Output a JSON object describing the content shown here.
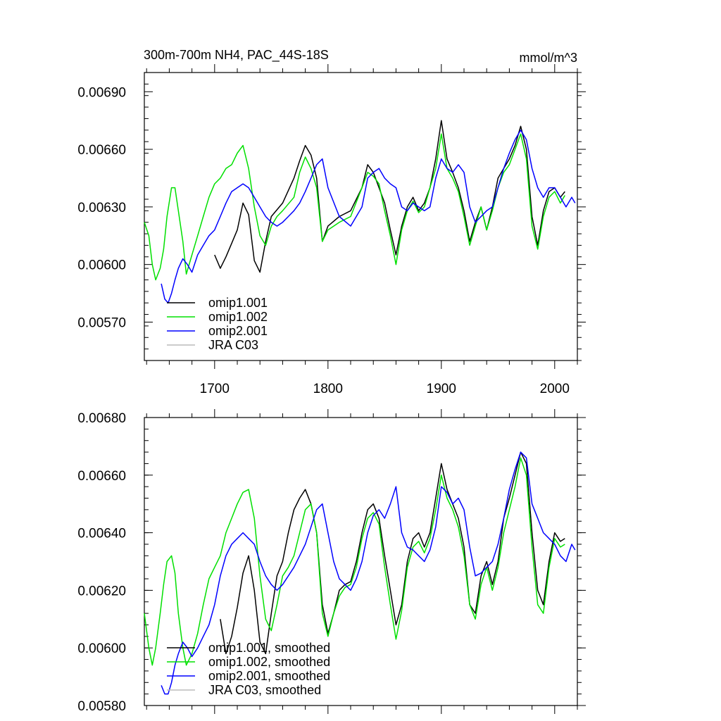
{
  "chart_data": [
    {
      "type": "line",
      "title": "300m-700m NH4, PAC_44S-18S",
      "units": "mmol/m^3",
      "xlim": [
        1638,
        2020
      ],
      "ylim": [
        0.0055,
        0.007
      ],
      "x_ticks": [
        1700,
        1800,
        1900,
        2000
      ],
      "x_tick_labels": [
        "1700",
        "1800",
        "1900",
        "2000"
      ],
      "y_ticks": [
        0.0057,
        0.006,
        0.0063,
        0.0066,
        0.0069
      ],
      "y_tick_labels": [
        "0.00570",
        "0.00600",
        "0.00630",
        "0.00660",
        "0.00690"
      ],
      "legend_position": "bottom-left",
      "series": [
        {
          "name": "omip1.001",
          "color": "#000000",
          "x": [
            1700,
            1705,
            1710,
            1715,
            1720,
            1725,
            1730,
            1735,
            1740,
            1745,
            1750,
            1760,
            1770,
            1775,
            1780,
            1785,
            1790,
            1795,
            1800,
            1810,
            1820,
            1830,
            1835,
            1840,
            1845,
            1850,
            1855,
            1860,
            1865,
            1870,
            1875,
            1880,
            1885,
            1890,
            1895,
            1900,
            1905,
            1910,
            1915,
            1920,
            1925,
            1930,
            1935,
            1940,
            1945,
            1950,
            1955,
            1960,
            1965,
            1970,
            1975,
            1980,
            1985,
            1990,
            1995,
            2000,
            2005,
            2009
          ],
          "values": [
            0.00605,
            0.00598,
            0.00604,
            0.00611,
            0.00618,
            0.00632,
            0.00626,
            0.00602,
            0.00596,
            0.00612,
            0.00625,
            0.00632,
            0.00645,
            0.00654,
            0.00662,
            0.00657,
            0.00645,
            0.00612,
            0.0062,
            0.00625,
            0.00628,
            0.0064,
            0.00652,
            0.00648,
            0.0064,
            0.00632,
            0.00618,
            0.00605,
            0.0062,
            0.0063,
            0.00635,
            0.00628,
            0.00632,
            0.0064,
            0.00655,
            0.00675,
            0.00655,
            0.00648,
            0.0064,
            0.00628,
            0.00612,
            0.00622,
            0.0063,
            0.00618,
            0.0063,
            0.00645,
            0.0065,
            0.00655,
            0.00662,
            0.00672,
            0.0066,
            0.00625,
            0.0061,
            0.00628,
            0.00638,
            0.0064,
            0.00635,
            0.00638
          ]
        },
        {
          "name": "omip1.002",
          "color": "#00e000",
          "x": [
            1638,
            1642,
            1645,
            1648,
            1652,
            1655,
            1658,
            1662,
            1665,
            1668,
            1672,
            1675,
            1680,
            1685,
            1690,
            1695,
            1700,
            1705,
            1710,
            1715,
            1720,
            1725,
            1730,
            1735,
            1740,
            1745,
            1750,
            1755,
            1760,
            1770,
            1775,
            1780,
            1785,
            1790,
            1795,
            1800,
            1810,
            1820,
            1830,
            1835,
            1840,
            1845,
            1850,
            1855,
            1860,
            1865,
            1870,
            1875,
            1880,
            1885,
            1890,
            1895,
            1900,
            1905,
            1910,
            1915,
            1920,
            1925,
            1930,
            1935,
            1940,
            1945,
            1950,
            1955,
            1960,
            1965,
            1970,
            1975,
            1980,
            1985,
            1990,
            1995,
            2000,
            2005,
            2009
          ],
          "values": [
            0.00622,
            0.00615,
            0.006,
            0.00592,
            0.00598,
            0.00608,
            0.00625,
            0.0064,
            0.0064,
            0.00628,
            0.00612,
            0.00595,
            0.00605,
            0.00615,
            0.00625,
            0.00635,
            0.00642,
            0.00645,
            0.0065,
            0.00652,
            0.00658,
            0.00662,
            0.0065,
            0.0063,
            0.00615,
            0.0061,
            0.0062,
            0.00625,
            0.00628,
            0.00635,
            0.00648,
            0.00656,
            0.0065,
            0.0064,
            0.00612,
            0.00618,
            0.00622,
            0.00625,
            0.0064,
            0.00648,
            0.00646,
            0.00642,
            0.00628,
            0.00615,
            0.006,
            0.00618,
            0.00628,
            0.00633,
            0.00627,
            0.0063,
            0.0064,
            0.0065,
            0.00668,
            0.0065,
            0.00645,
            0.00638,
            0.00625,
            0.0061,
            0.0062,
            0.0063,
            0.00618,
            0.00628,
            0.0064,
            0.00648,
            0.00652,
            0.0066,
            0.00668,
            0.00655,
            0.0062,
            0.00608,
            0.00625,
            0.00635,
            0.00638,
            0.00632,
            0.00636
          ]
        },
        {
          "name": "omip2.001",
          "color": "#0000ff",
          "x": [
            1653,
            1656,
            1659,
            1662,
            1665,
            1668,
            1672,
            1676,
            1680,
            1685,
            1690,
            1695,
            1700,
            1705,
            1710,
            1715,
            1720,
            1725,
            1730,
            1735,
            1740,
            1745,
            1750,
            1755,
            1760,
            1765,
            1770,
            1775,
            1780,
            1785,
            1790,
            1795,
            1800,
            1810,
            1820,
            1830,
            1835,
            1840,
            1845,
            1850,
            1855,
            1860,
            1865,
            1870,
            1875,
            1880,
            1885,
            1890,
            1895,
            1900,
            1905,
            1910,
            1915,
            1920,
            1925,
            1930,
            1935,
            1940,
            1945,
            1950,
            1955,
            1960,
            1965,
            1970,
            1975,
            1980,
            1985,
            1990,
            1995,
            2000,
            2005,
            2010,
            2015,
            2018
          ],
          "values": [
            0.0059,
            0.00582,
            0.0058,
            0.00585,
            0.00592,
            0.00598,
            0.00603,
            0.006,
            0.00596,
            0.00605,
            0.0061,
            0.00615,
            0.00618,
            0.00625,
            0.00632,
            0.00638,
            0.0064,
            0.00642,
            0.0064,
            0.00635,
            0.0063,
            0.00625,
            0.00622,
            0.0062,
            0.00622,
            0.00625,
            0.00628,
            0.00632,
            0.00638,
            0.00645,
            0.00652,
            0.00655,
            0.0064,
            0.00625,
            0.0062,
            0.0063,
            0.00645,
            0.00648,
            0.0065,
            0.00645,
            0.00642,
            0.0064,
            0.0063,
            0.00628,
            0.00632,
            0.0063,
            0.00628,
            0.0063,
            0.00645,
            0.00655,
            0.0065,
            0.00648,
            0.00652,
            0.00648,
            0.0063,
            0.00622,
            0.00625,
            0.00628,
            0.0063,
            0.0064,
            0.0065,
            0.00658,
            0.00665,
            0.0067,
            0.00665,
            0.0065,
            0.0064,
            0.00635,
            0.0064,
            0.0064,
            0.00635,
            0.0063,
            0.00635,
            0.00632
          ]
        },
        {
          "name": "JRA C03",
          "color": "#bbbbbb",
          "x": [],
          "values": []
        }
      ]
    },
    {
      "type": "line",
      "title": "",
      "xlim": [
        1638,
        2020
      ],
      "ylim": [
        0.0058,
        0.0068
      ],
      "x_ticks": [
        1700,
        1800,
        1900,
        2000
      ],
      "y_ticks": [
        0.0058,
        0.006,
        0.0062,
        0.0064,
        0.0066,
        0.0068
      ],
      "y_tick_labels": [
        "0.00580",
        "0.00600",
        "0.00620",
        "0.00640",
        "0.00660",
        "0.00680"
      ],
      "legend_position": "bottom-left",
      "series": [
        {
          "name": "omip1.001, smoothed",
          "color": "#000000",
          "x": [
            1705,
            1710,
            1715,
            1720,
            1725,
            1730,
            1735,
            1740,
            1745,
            1750,
            1755,
            1760,
            1765,
            1770,
            1775,
            1780,
            1785,
            1790,
            1795,
            1800,
            1805,
            1810,
            1815,
            1820,
            1825,
            1830,
            1835,
            1840,
            1845,
            1850,
            1855,
            1860,
            1865,
            1870,
            1875,
            1880,
            1885,
            1890,
            1895,
            1900,
            1905,
            1910,
            1915,
            1920,
            1925,
            1930,
            1935,
            1940,
            1945,
            1950,
            1955,
            1960,
            1965,
            1970,
            1975,
            1980,
            1985,
            1990,
            1995,
            2000,
            2005,
            2009
          ],
          "values": [
            0.0061,
            0.00598,
            0.00604,
            0.00614,
            0.00626,
            0.00632,
            0.0062,
            0.00602,
            0.00598,
            0.00612,
            0.00625,
            0.0063,
            0.0064,
            0.00648,
            0.00652,
            0.00655,
            0.0065,
            0.0064,
            0.00615,
            0.00605,
            0.00612,
            0.0062,
            0.00622,
            0.00623,
            0.0063,
            0.0064,
            0.00648,
            0.0065,
            0.00645,
            0.00632,
            0.0062,
            0.00608,
            0.00615,
            0.0063,
            0.00638,
            0.0064,
            0.00635,
            0.0064,
            0.00652,
            0.00664,
            0.00655,
            0.0065,
            0.00645,
            0.00635,
            0.00615,
            0.00612,
            0.00625,
            0.0063,
            0.00622,
            0.0063,
            0.00645,
            0.00652,
            0.0066,
            0.00668,
            0.00664,
            0.0064,
            0.0062,
            0.00615,
            0.0063,
            0.0064,
            0.00637,
            0.00638
          ]
        },
        {
          "name": "omip1.002, smoothed",
          "color": "#00e000",
          "x": [
            1638,
            1642,
            1645,
            1648,
            1652,
            1655,
            1658,
            1662,
            1665,
            1668,
            1672,
            1675,
            1680,
            1685,
            1690,
            1695,
            1700,
            1705,
            1710,
            1715,
            1720,
            1725,
            1730,
            1735,
            1740,
            1745,
            1750,
            1755,
            1760,
            1765,
            1770,
            1775,
            1780,
            1785,
            1790,
            1795,
            1800,
            1805,
            1810,
            1815,
            1820,
            1825,
            1830,
            1835,
            1840,
            1845,
            1850,
            1855,
            1860,
            1865,
            1870,
            1875,
            1880,
            1885,
            1890,
            1895,
            1900,
            1905,
            1910,
            1915,
            1920,
            1925,
            1930,
            1935,
            1940,
            1945,
            1950,
            1955,
            1960,
            1965,
            1970,
            1975,
            1980,
            1985,
            1990,
            1995,
            2000,
            2005,
            2009
          ],
          "values": [
            0.00612,
            0.006,
            0.00594,
            0.006,
            0.00612,
            0.00622,
            0.0063,
            0.00632,
            0.00626,
            0.00612,
            0.006,
            0.00594,
            0.00598,
            0.00605,
            0.00615,
            0.00624,
            0.00628,
            0.00632,
            0.0064,
            0.00645,
            0.0065,
            0.00654,
            0.00655,
            0.00645,
            0.00625,
            0.0061,
            0.00606,
            0.00615,
            0.00625,
            0.00628,
            0.00632,
            0.0064,
            0.00648,
            0.0065,
            0.0064,
            0.00612,
            0.00604,
            0.00612,
            0.00618,
            0.00621,
            0.00622,
            0.00628,
            0.00638,
            0.00645,
            0.00647,
            0.00643,
            0.00628,
            0.00615,
            0.00603,
            0.00613,
            0.00628,
            0.00635,
            0.00637,
            0.00633,
            0.00638,
            0.00648,
            0.0066,
            0.00652,
            0.00648,
            0.00642,
            0.00632,
            0.00615,
            0.0061,
            0.00622,
            0.00628,
            0.0062,
            0.00628,
            0.0064,
            0.00648,
            0.00656,
            0.00666,
            0.0066,
            0.00635,
            0.00615,
            0.00612,
            0.00628,
            0.00638,
            0.00635,
            0.00636
          ]
        },
        {
          "name": "omip2.001, smoothed",
          "color": "#0000ff",
          "x": [
            1653,
            1656,
            1659,
            1662,
            1665,
            1668,
            1672,
            1676,
            1680,
            1685,
            1690,
            1695,
            1700,
            1705,
            1710,
            1715,
            1720,
            1725,
            1730,
            1735,
            1740,
            1745,
            1750,
            1755,
            1760,
            1765,
            1770,
            1775,
            1780,
            1785,
            1790,
            1795,
            1800,
            1805,
            1810,
            1815,
            1820,
            1825,
            1830,
            1835,
            1840,
            1845,
            1850,
            1855,
            1860,
            1865,
            1870,
            1875,
            1880,
            1885,
            1890,
            1895,
            1900,
            1905,
            1910,
            1915,
            1920,
            1925,
            1930,
            1935,
            1940,
            1945,
            1950,
            1955,
            1960,
            1965,
            1970,
            1975,
            1980,
            1985,
            1990,
            1995,
            2000,
            2005,
            2010,
            2015,
            2018
          ],
          "values": [
            0.00587,
            0.00584,
            0.00584,
            0.00588,
            0.00594,
            0.00598,
            0.00602,
            0.006,
            0.00597,
            0.006,
            0.00604,
            0.00608,
            0.00615,
            0.00625,
            0.00632,
            0.00636,
            0.00638,
            0.0064,
            0.00638,
            0.00636,
            0.0063,
            0.00625,
            0.00622,
            0.0062,
            0.00622,
            0.00625,
            0.00628,
            0.00632,
            0.00636,
            0.00642,
            0.00648,
            0.0065,
            0.0064,
            0.0063,
            0.00624,
            0.00622,
            0.0062,
            0.00624,
            0.0063,
            0.0064,
            0.00646,
            0.00648,
            0.00645,
            0.0065,
            0.00656,
            0.0064,
            0.00635,
            0.00634,
            0.00632,
            0.0063,
            0.00634,
            0.00642,
            0.00656,
            0.00654,
            0.0065,
            0.00652,
            0.00648,
            0.00635,
            0.00625,
            0.00626,
            0.00628,
            0.0063,
            0.00636,
            0.00645,
            0.00655,
            0.00662,
            0.00668,
            0.00666,
            0.0065,
            0.00645,
            0.0064,
            0.00638,
            0.00636,
            0.00632,
            0.0063,
            0.00636,
            0.00634
          ]
        },
        {
          "name": "JRA C03, smoothed",
          "color": "#bbbbbb",
          "x": [],
          "values": []
        }
      ]
    }
  ]
}
